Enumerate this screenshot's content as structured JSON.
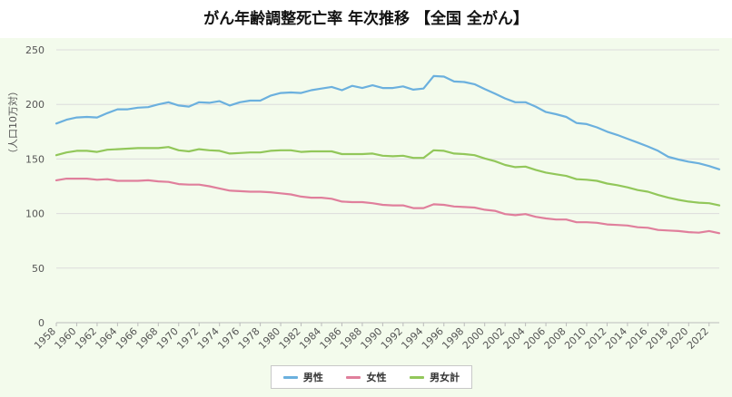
{
  "title": "がん年齢調整死亡率 年次推移 【全国 全がん】",
  "chart_data": {
    "type": "line",
    "title": "がん年齢調整死亡率 年次推移 【全国 全がん】",
    "xlabel": "",
    "ylabel": "（人口10万対）",
    "ylim": [
      0,
      250
    ],
    "yticks": [
      0,
      50,
      100,
      150,
      200,
      250
    ],
    "grid": true,
    "legend_position": "bottom",
    "x": [
      1958,
      1959,
      1960,
      1961,
      1962,
      1963,
      1964,
      1965,
      1966,
      1967,
      1968,
      1969,
      1970,
      1971,
      1972,
      1973,
      1974,
      1975,
      1976,
      1977,
      1978,
      1979,
      1980,
      1981,
      1982,
      1983,
      1984,
      1985,
      1986,
      1987,
      1988,
      1989,
      1990,
      1991,
      1992,
      1993,
      1994,
      1995,
      1996,
      1997,
      1998,
      1999,
      2000,
      2001,
      2002,
      2003,
      2004,
      2005,
      2006,
      2007,
      2008,
      2009,
      2010,
      2011,
      2012,
      2013,
      2014,
      2015,
      2016,
      2017,
      2018,
      2019,
      2020,
      2021,
      2022,
      2023
    ],
    "xticks": [
      "1958",
      "1960",
      "1962",
      "1964",
      "1966",
      "1968",
      "1970",
      "1972",
      "1974",
      "1976",
      "1978",
      "1980",
      "1982",
      "1984",
      "1986",
      "1988",
      "1990",
      "1992",
      "1994",
      "1996",
      "1998",
      "2000",
      "2002",
      "2004",
      "2006",
      "2008",
      "2010",
      "2012",
      "2014",
      "2016",
      "2018",
      "2020",
      "2022"
    ],
    "series": [
      {
        "name": "男性",
        "color": "#6bb0de",
        "values": [
          182.5,
          186,
          188,
          188.5,
          188,
          192,
          195.5,
          195.5,
          197,
          197.5,
          200,
          202,
          199,
          198,
          202,
          201.5,
          203,
          199,
          202,
          203.5,
          203.5,
          208,
          210.5,
          211,
          210.5,
          213,
          214.5,
          216,
          213,
          217,
          215,
          217.5,
          215,
          215,
          216.5,
          213.5,
          214.5,
          226,
          225.5,
          221,
          220.5,
          218.5,
          214,
          210,
          205.5,
          202,
          202,
          198,
          193,
          191,
          188.5,
          183,
          182,
          179,
          175,
          172,
          168.5,
          165,
          161.5,
          157.5,
          152,
          149.5,
          147.5,
          146,
          143.5,
          140.5
        ]
      },
      {
        "name": "女性",
        "color": "#e07f9c",
        "values": [
          130.5,
          132,
          132,
          132,
          131,
          131.5,
          130,
          130,
          130,
          130.5,
          129.5,
          129,
          127,
          126.5,
          126.5,
          125,
          123,
          121,
          120.5,
          120,
          120,
          119.5,
          118.5,
          117.5,
          115.5,
          114.5,
          114.5,
          113.5,
          111,
          110.5,
          110.5,
          109.5,
          108,
          107.5,
          107.5,
          105,
          105,
          108.5,
          108,
          106.5,
          106,
          105.5,
          103.5,
          102.5,
          99.5,
          98.5,
          99.5,
          97,
          95.5,
          94.5,
          94.5,
          92,
          92,
          91.5,
          90,
          89.5,
          89,
          87.5,
          87,
          85,
          84.5,
          84,
          83,
          82.5,
          84,
          82
        ]
      },
      {
        "name": "男女計",
        "color": "#92c75a",
        "values": [
          153.5,
          156,
          157.5,
          157.5,
          156.5,
          158.5,
          159,
          159.5,
          160,
          160,
          160,
          161,
          158,
          157,
          159,
          158,
          157.5,
          155,
          155.5,
          156,
          156,
          157.5,
          158,
          158,
          156.5,
          157,
          157,
          157,
          154.5,
          154.5,
          154.5,
          155,
          153,
          152.5,
          153,
          151,
          151,
          158,
          157.5,
          155,
          154.5,
          153.5,
          150.5,
          148,
          144.5,
          142.5,
          143,
          140,
          137.5,
          136,
          134.5,
          131.5,
          131,
          130,
          127.5,
          126,
          124,
          121.5,
          120,
          117,
          114.5,
          112.5,
          111,
          110,
          109.5,
          107.5
        ]
      }
    ]
  }
}
